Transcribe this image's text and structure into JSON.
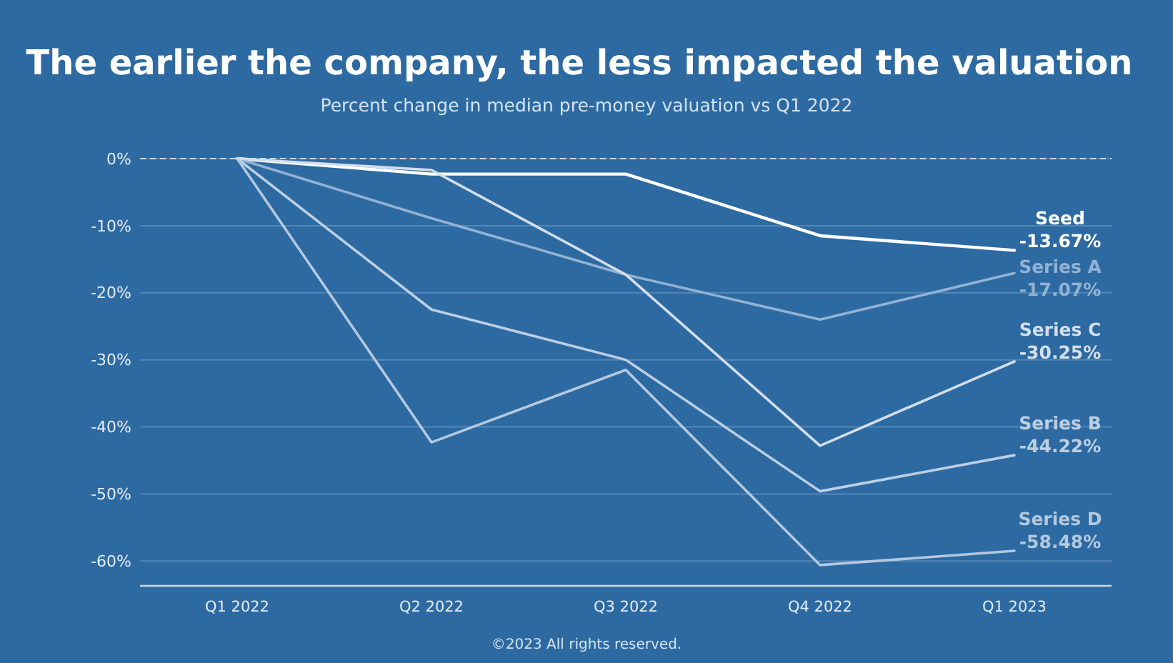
{
  "chart_data": {
    "type": "line",
    "title": "The earlier the company, the less impacted the valuation",
    "subtitle": "Percent change in median pre-money valuation vs Q1 2022",
    "categories": [
      "Q1 2022",
      "Q2 2022",
      "Q3 2022",
      "Q4 2022",
      "Q1 2023"
    ],
    "series": [
      {
        "name": "Seed",
        "color": "#ffffff",
        "values": [
          0,
          -2.3,
          -2.3,
          -11.5,
          -13.67
        ],
        "value_labels": [
          null,
          null,
          null,
          null,
          "-13.67%"
        ]
      },
      {
        "name": "Series A",
        "color": "#93b2d3",
        "values": [
          0,
          -8.9,
          -17.3,
          -24,
          -17.07
        ],
        "value_labels": [
          null,
          null,
          null,
          null,
          "-17.07%"
        ]
      },
      {
        "name": "Series C",
        "color": "#d3deeb",
        "values": [
          0,
          -1.7,
          -17.3,
          -42.8,
          -30.25
        ],
        "value_labels": [
          null,
          null,
          null,
          null,
          "-30.25%"
        ]
      },
      {
        "name": "Series B",
        "color": "#bccfe3",
        "values": [
          0,
          -22.5,
          -30,
          -49.6,
          -44.22
        ],
        "value_labels": [
          null,
          null,
          null,
          null,
          "-44.22%"
        ]
      },
      {
        "name": "Series D",
        "color": "#b4c8df",
        "values": [
          0,
          -42.3,
          -31.5,
          -60.6,
          -58.48
        ],
        "value_labels": [
          null,
          null,
          null,
          null,
          "-58.48%"
        ]
      }
    ],
    "ylim": [
      -63.7,
      0
    ],
    "yticks": [
      {
        "value": 0,
        "label": "0%"
      },
      {
        "value": -10,
        "label": "-10%"
      },
      {
        "value": -20,
        "label": "-20%"
      },
      {
        "value": -30,
        "label": "-30%"
      },
      {
        "value": -40,
        "label": "-40%"
      },
      {
        "value": -50,
        "label": "-50%"
      },
      {
        "value": -60,
        "label": "-60%"
      }
    ],
    "grid": "y",
    "legend": false,
    "marker": "none",
    "line_style": "solid",
    "ref_lines": [
      {
        "axis": "y",
        "value": 0,
        "label": null,
        "line_style": "dashed",
        "color": "#c9d8ea"
      }
    ],
    "annotations": [
      "©2023 All rights reserved."
    ]
  }
}
